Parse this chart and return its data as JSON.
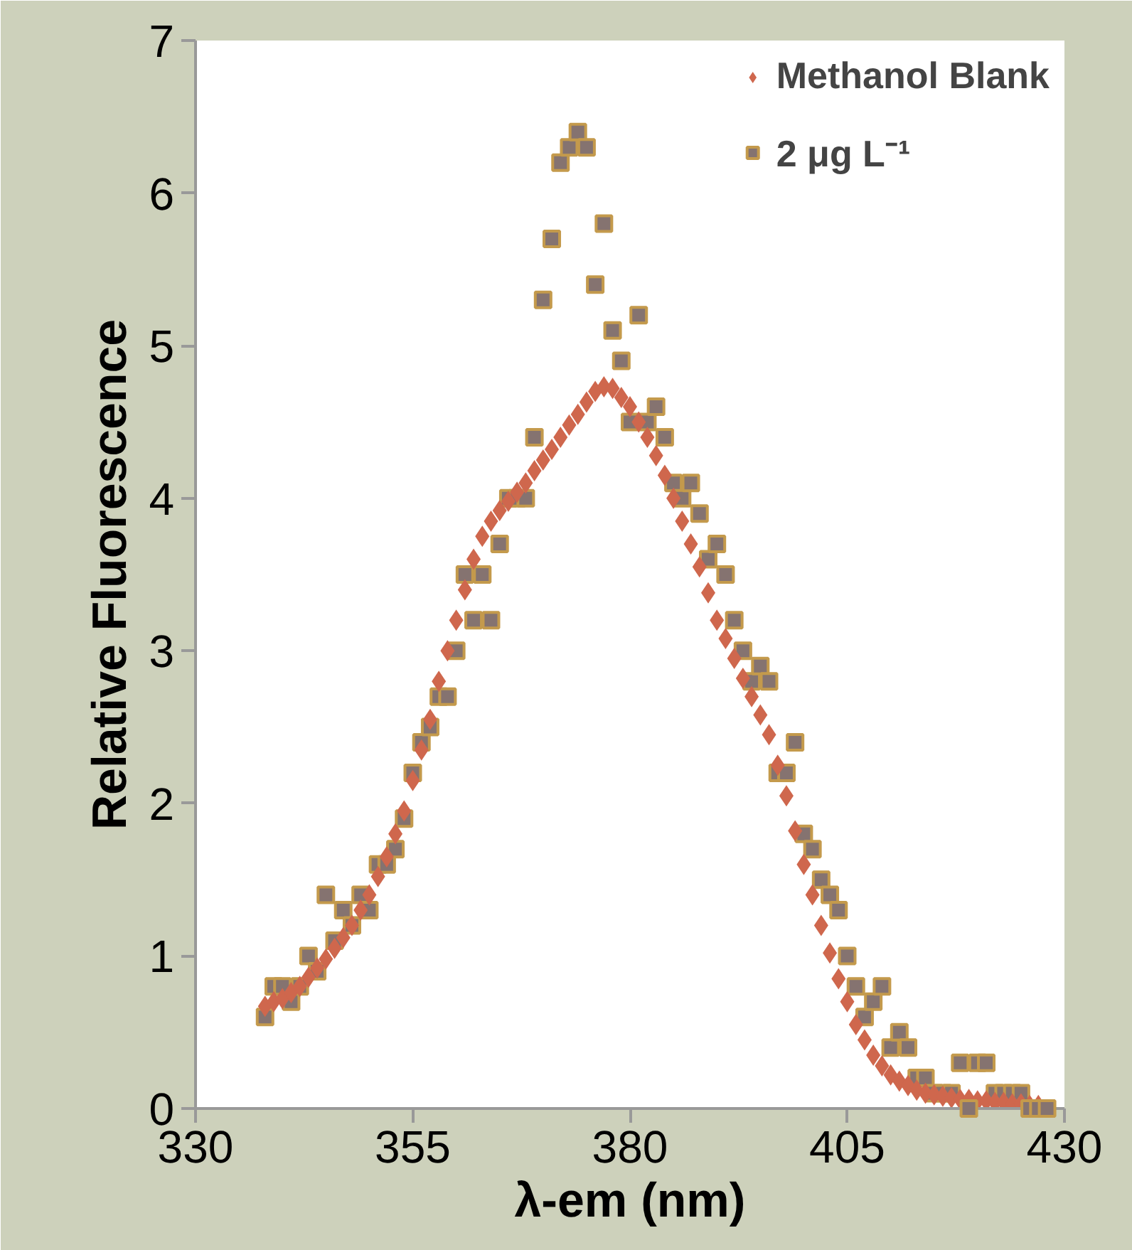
{
  "chart_data": {
    "type": "scatter",
    "xlabel": "λ-em (nm)",
    "ylabel": "Relative Fluorescence",
    "xlim": [
      330,
      430
    ],
    "ylim": [
      0,
      7
    ],
    "xticks": [
      330,
      355,
      380,
      405,
      430
    ],
    "yticks": [
      0,
      1,
      2,
      3,
      4,
      5,
      6,
      7
    ],
    "grid": false,
    "legend": "top right",
    "series": [
      {
        "name": "Methanol Blank",
        "color": "#cf674d",
        "marker": "diamond",
        "x": [
          338,
          339,
          340,
          341,
          342,
          343,
          344,
          345,
          346,
          347,
          348,
          349,
          350,
          351,
          352,
          353,
          354,
          355,
          356,
          357,
          358,
          359,
          360,
          361,
          362,
          363,
          364,
          365,
          366,
          367,
          368,
          369,
          370,
          371,
          372,
          373,
          374,
          375,
          376,
          377,
          378,
          379,
          380,
          381,
          382,
          383,
          384,
          385,
          386,
          387,
          388,
          389,
          390,
          391,
          392,
          393,
          394,
          395,
          396,
          397,
          398,
          399,
          400,
          401,
          402,
          403,
          404,
          405,
          406,
          407,
          408,
          409,
          410,
          411,
          412,
          413,
          414,
          415,
          416,
          417,
          418,
          419,
          420,
          421,
          422,
          423,
          424,
          425,
          426,
          427
        ],
        "values": [
          0.67,
          0.7,
          0.72,
          0.76,
          0.8,
          0.86,
          0.92,
          0.98,
          1.05,
          1.12,
          1.2,
          1.3,
          1.4,
          1.52,
          1.65,
          1.8,
          1.95,
          2.15,
          2.35,
          2.55,
          2.8,
          3.0,
          3.2,
          3.4,
          3.6,
          3.75,
          3.85,
          3.92,
          3.98,
          4.04,
          4.1,
          4.18,
          4.25,
          4.32,
          4.4,
          4.48,
          4.55,
          4.63,
          4.7,
          4.73,
          4.72,
          4.66,
          4.6,
          4.5,
          4.4,
          4.28,
          4.15,
          4.0,
          3.85,
          3.7,
          3.55,
          3.38,
          3.2,
          3.08,
          2.95,
          2.82,
          2.7,
          2.58,
          2.45,
          2.25,
          2.05,
          1.82,
          1.6,
          1.4,
          1.2,
          1.02,
          0.85,
          0.7,
          0.55,
          0.45,
          0.35,
          0.28,
          0.22,
          0.18,
          0.15,
          0.12,
          0.1,
          0.09,
          0.08,
          0.07,
          0.06,
          0.06,
          0.05,
          0.05,
          0.04,
          0.04,
          0.03,
          0.03,
          0.02,
          0.02
        ]
      },
      {
        "name": "2 μg L⁻¹",
        "color": "#857370",
        "marker": "square",
        "x": [
          338,
          339,
          340,
          341,
          342,
          343,
          344,
          345,
          346,
          347,
          348,
          349,
          350,
          351,
          352,
          353,
          354,
          355,
          356,
          357,
          358,
          359,
          360,
          361,
          362,
          363,
          364,
          365,
          366,
          367,
          368,
          369,
          370,
          371,
          372,
          373,
          374,
          375,
          376,
          377,
          378,
          379,
          380,
          381,
          382,
          383,
          384,
          385,
          386,
          387,
          388,
          389,
          390,
          391,
          392,
          393,
          394,
          395,
          396,
          397,
          398,
          399,
          400,
          401,
          402,
          403,
          404,
          405,
          406,
          407,
          408,
          409,
          410,
          411,
          412,
          413,
          414,
          415,
          416,
          417,
          418,
          419,
          420,
          421,
          422,
          423,
          424,
          425,
          426,
          427,
          428
        ],
        "values": [
          0.6,
          0.8,
          0.8,
          0.7,
          0.8,
          1.0,
          0.9,
          1.4,
          1.1,
          1.3,
          1.2,
          1.4,
          1.3,
          1.6,
          1.6,
          1.7,
          1.9,
          2.2,
          2.4,
          2.5,
          2.7,
          2.7,
          3.0,
          3.5,
          3.2,
          3.5,
          3.2,
          3.7,
          4.0,
          4.0,
          4.0,
          4.4,
          5.3,
          5.7,
          6.2,
          6.3,
          6.4,
          6.3,
          5.4,
          5.8,
          5.1,
          4.9,
          4.5,
          5.2,
          4.5,
          4.6,
          4.4,
          4.1,
          4.0,
          4.1,
          3.9,
          3.6,
          3.7,
          3.5,
          3.2,
          3.0,
          2.8,
          2.9,
          2.8,
          2.2,
          2.2,
          2.4,
          1.8,
          1.7,
          1.5,
          1.4,
          1.3,
          1.0,
          0.8,
          0.6,
          0.7,
          0.8,
          0.4,
          0.5,
          0.4,
          0.2,
          0.2,
          0.1,
          0.1,
          0.1,
          0.3,
          0.0,
          0.3,
          0.3,
          0.1,
          0.1,
          0.1,
          0.1,
          0.0,
          0.0,
          0.0
        ]
      }
    ]
  }
}
